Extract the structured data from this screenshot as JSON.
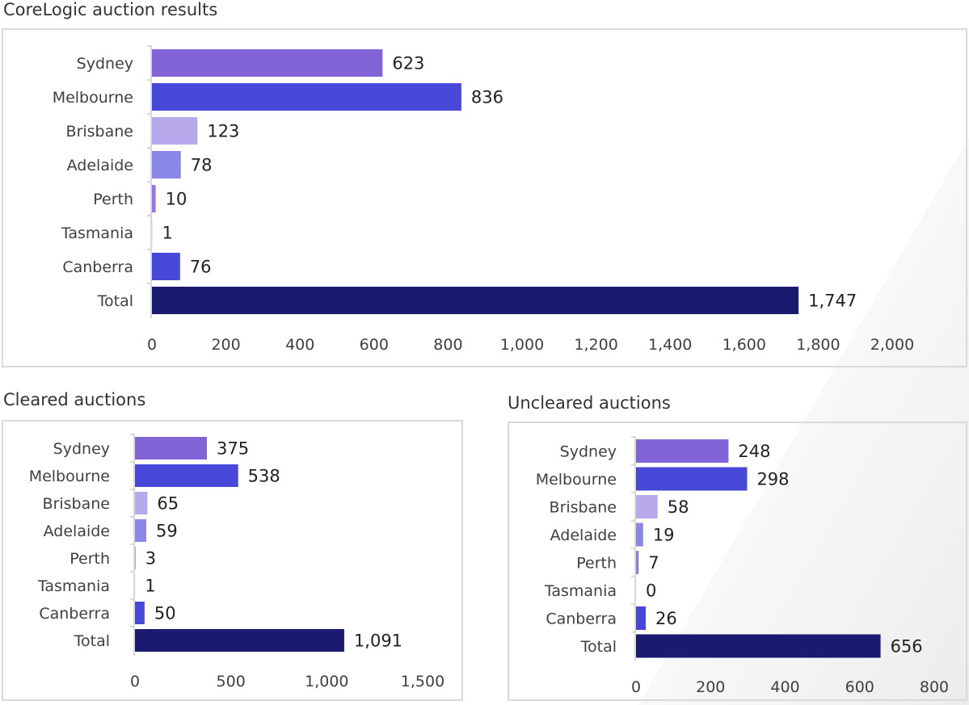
{
  "charts": {
    "main": {
      "title": "CoreLogic auction results",
      "chart_data": {
        "type": "bar",
        "orientation": "horizontal",
        "categories": [
          "Sydney",
          "Melbourne",
          "Brisbane",
          "Adelaide",
          "Perth",
          "Tasmania",
          "Canberra",
          "Total"
        ],
        "values": [
          623,
          836,
          123,
          78,
          10,
          1,
          76,
          1747
        ],
        "value_labels": [
          "623",
          "836",
          "123",
          "78",
          "10",
          "1",
          "76",
          "1,747"
        ],
        "xlim": [
          0,
          2000
        ],
        "ticks": [
          0,
          200,
          400,
          600,
          800,
          1000,
          1200,
          1400,
          1600,
          1800,
          2000
        ],
        "tick_labels": [
          "0",
          "200",
          "400",
          "600",
          "800",
          "1,000",
          "1,200",
          "1,400",
          "1,600",
          "1,800",
          "2,000"
        ],
        "grid": false,
        "legend": "none",
        "colors": [
          "#8264d6",
          "#4848d8",
          "#b8a8ec",
          "#8a88e6",
          "#9478dc",
          "#c8c0f0",
          "#4848d8",
          "#1a1a70"
        ]
      }
    },
    "cleared": {
      "title": "Cleared auctions",
      "chart_data": {
        "type": "bar",
        "orientation": "horizontal",
        "categories": [
          "Sydney",
          "Melbourne",
          "Brisbane",
          "Adelaide",
          "Perth",
          "Tasmania",
          "Canberra",
          "Total"
        ],
        "values": [
          375,
          538,
          65,
          59,
          3,
          1,
          50,
          1091
        ],
        "value_labels": [
          "375",
          "538",
          "65",
          "59",
          "3",
          "1",
          "50",
          "1,091"
        ],
        "xlim": [
          0,
          1500
        ],
        "ticks": [
          0,
          500,
          1000,
          1500
        ],
        "tick_labels": [
          "0",
          "500",
          "1,000",
          "1,500"
        ],
        "grid": false,
        "legend": "none",
        "colors": [
          "#8264d6",
          "#4848d8",
          "#b8a8ec",
          "#8a88e6",
          "#9478dc",
          "#c8c0f0",
          "#4848d8",
          "#1a1a70"
        ]
      }
    },
    "uncleared": {
      "title": "Uncleared auctions",
      "chart_data": {
        "type": "bar",
        "orientation": "horizontal",
        "categories": [
          "Sydney",
          "Melbourne",
          "Brisbane",
          "Adelaide",
          "Perth",
          "Tasmania",
          "Canberra",
          "Total"
        ],
        "values": [
          248,
          298,
          58,
          19,
          7,
          0,
          26,
          656
        ],
        "value_labels": [
          "248",
          "298",
          "58",
          "19",
          "7",
          "0",
          "26",
          "656"
        ],
        "xlim": [
          0,
          800
        ],
        "ticks": [
          0,
          200,
          400,
          600,
          800
        ],
        "tick_labels": [
          "0",
          "200",
          "400",
          "600",
          "800"
        ],
        "grid": false,
        "legend": "none",
        "colors": [
          "#8264d6",
          "#4848d8",
          "#b8a8ec",
          "#8a88e6",
          "#9478dc",
          "#c8c0f0",
          "#4848d8",
          "#1a1a70"
        ]
      }
    }
  }
}
